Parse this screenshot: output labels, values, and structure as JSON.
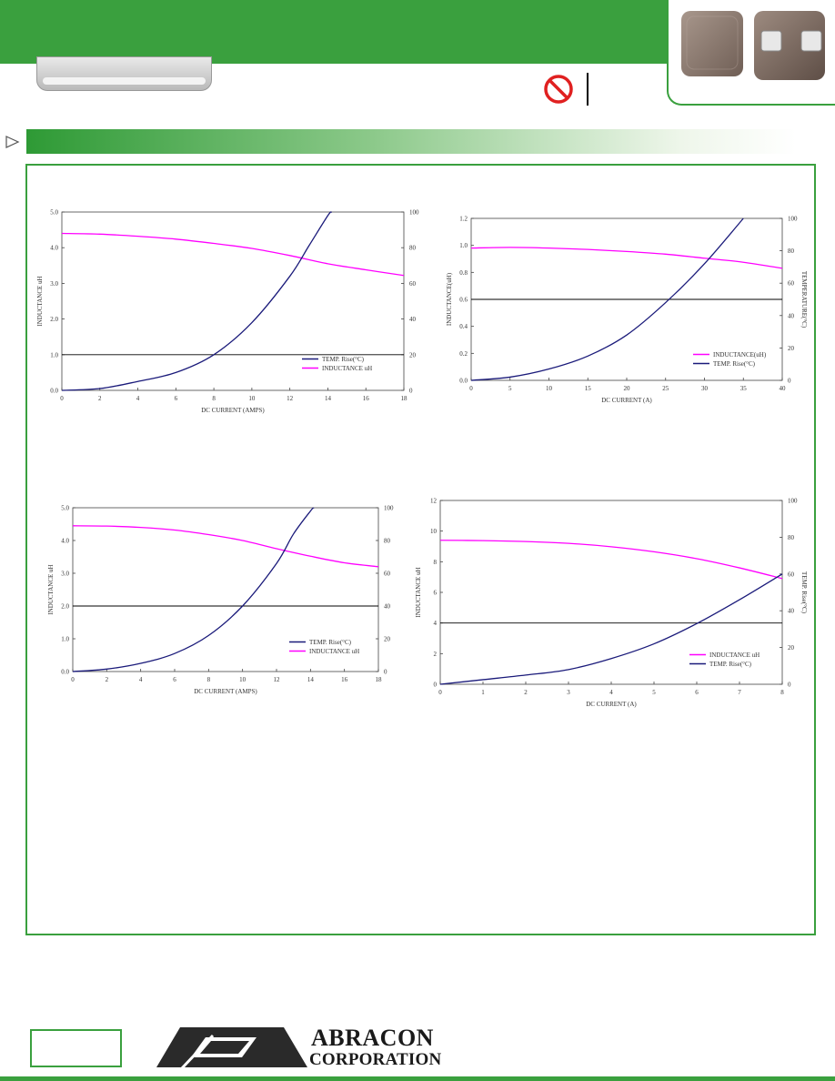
{
  "brand": {
    "line1": "ABRACON",
    "line2": "CORPORATION",
    "green": "#3aa03e"
  },
  "rohs_icon": "no-symbol-icon",
  "colors": {
    "inductance_magenta": "#ff00ff",
    "temp_navy": "#1a1a7a",
    "ref_line": "#000000"
  },
  "chart_data": [
    {
      "type": "line",
      "xlabel": "DC CURRENT (AMPS)",
      "ylabel": "INDUCTANCE uH",
      "y2label": "",
      "xlim": [
        0,
        18
      ],
      "ylim": [
        0,
        5
      ],
      "y2lim": [
        0,
        100
      ],
      "xticks": [
        "0",
        "2",
        "4",
        "6",
        "8",
        "10",
        "12",
        "14",
        "16",
        "18"
      ],
      "yticks": [
        "0.0",
        "1.0",
        "2.0",
        "3.0",
        "4.0",
        "5.0"
      ],
      "y2ticks": [
        "0",
        "20",
        "40",
        "60",
        "80",
        "100"
      ],
      "hline_y": 1.0,
      "legend": [
        "TEMP. Rise(°C)",
        "INDUCTANCE uH"
      ],
      "series": [
        {
          "name": "INDUCTANCE uH",
          "axis": "left",
          "color": "#ff00ff",
          "x": [
            0,
            2,
            4,
            6,
            8,
            10,
            12,
            14,
            16,
            18
          ],
          "y": [
            4.4,
            4.38,
            4.32,
            4.24,
            4.12,
            3.98,
            3.78,
            3.55,
            3.38,
            3.22
          ]
        },
        {
          "name": "TEMP. Rise(°C)",
          "axis": "right",
          "color": "#1a1a7a",
          "x": [
            0,
            2,
            4,
            6,
            8,
            10,
            12,
            13,
            14,
            14.2
          ],
          "y": [
            0,
            1,
            5,
            10,
            20,
            38,
            64,
            81,
            98,
            100
          ]
        }
      ]
    },
    {
      "type": "line",
      "xlabel": "DC CURRENT (A)",
      "ylabel": "INDUCTANCE(uH)",
      "y2label": "TEMPERATURE(°C)",
      "xlim": [
        0,
        40
      ],
      "ylim": [
        0,
        1.2
      ],
      "y2lim": [
        0,
        100
      ],
      "xticks": [
        "0",
        "5",
        "10",
        "15",
        "20",
        "25",
        "30",
        "35",
        "40"
      ],
      "yticks": [
        "0.0",
        "0.2",
        "0.4",
        "0.6",
        "0.8",
        "1.0",
        "1.2"
      ],
      "y2ticks": [
        "0",
        "20",
        "40",
        "60",
        "80",
        "100"
      ],
      "hline_y": 0.6,
      "legend": [
        "INDUCTANCE(uH)",
        "TEMP. Rise(°C)"
      ],
      "series": [
        {
          "name": "INDUCTANCE(uH)",
          "axis": "left",
          "color": "#ff00ff",
          "x": [
            0,
            5,
            10,
            15,
            20,
            25,
            30,
            35,
            40
          ],
          "y": [
            0.98,
            0.985,
            0.98,
            0.97,
            0.955,
            0.935,
            0.905,
            0.875,
            0.83
          ]
        },
        {
          "name": "TEMP. Rise(°C)",
          "axis": "right",
          "color": "#1a1a7a",
          "x": [
            0,
            5,
            10,
            15,
            20,
            25,
            30,
            35
          ],
          "y": [
            0,
            2,
            7,
            15,
            28,
            48,
            72,
            100
          ]
        }
      ]
    },
    {
      "type": "line",
      "xlabel": "DC CURRENT (AMPS)",
      "ylabel": "INDUCTANCE uH",
      "y2label": "",
      "xlim": [
        0,
        18
      ],
      "ylim": [
        0,
        5
      ],
      "y2lim": [
        0,
        100
      ],
      "xticks": [
        "0",
        "2",
        "4",
        "6",
        "8",
        "10",
        "12",
        "14",
        "16",
        "18"
      ],
      "yticks": [
        "0.0",
        "1.0",
        "2.0",
        "3.0",
        "4.0",
        "5.0"
      ],
      "y2ticks": [
        "0",
        "20",
        "40",
        "60",
        "80",
        "100"
      ],
      "hline_y": 2.0,
      "legend": [
        "TEMP. Rise(°C)",
        "INDUCTANCE uH"
      ],
      "series": [
        {
          "name": "INDUCTANCE uH",
          "axis": "left",
          "color": "#ff00ff",
          "x": [
            0,
            2,
            4,
            6,
            8,
            10,
            12,
            14,
            16,
            18
          ],
          "y": [
            4.45,
            4.44,
            4.4,
            4.32,
            4.18,
            4.0,
            3.75,
            3.52,
            3.32,
            3.2
          ]
        },
        {
          "name": "TEMP. Rise(°C)",
          "axis": "right",
          "color": "#1a1a7a",
          "x": [
            0,
            2,
            4,
            6,
            8,
            10,
            12,
            13,
            14,
            14.2
          ],
          "y": [
            0,
            1.5,
            5,
            11,
            22,
            40,
            66,
            84,
            98,
            100
          ]
        }
      ]
    },
    {
      "type": "line",
      "xlabel": "DC CURRENT (A)",
      "ylabel": "INDUCTANCE uH",
      "y2label": "TEMP. Rise(°C)",
      "xlim": [
        0,
        8
      ],
      "ylim": [
        0,
        12
      ],
      "y2lim": [
        0,
        100
      ],
      "xticks": [
        "0",
        "1",
        "2",
        "3",
        "4",
        "5",
        "6",
        "7",
        "8"
      ],
      "yticks": [
        "0",
        "2",
        "4",
        "6",
        "8",
        "10",
        "12"
      ],
      "y2ticks": [
        "0",
        "20",
        "40",
        "60",
        "80",
        "100"
      ],
      "hline_y": 4,
      "legend": [
        "INDUCTANCE uH",
        "TEMP. Rise(°C)"
      ],
      "series": [
        {
          "name": "INDUCTANCE uH",
          "axis": "left",
          "color": "#ff00ff",
          "x": [
            0,
            1,
            2,
            3,
            4,
            5,
            6,
            7,
            8
          ],
          "y": [
            9.4,
            9.38,
            9.32,
            9.2,
            8.98,
            8.65,
            8.2,
            7.6,
            6.9
          ]
        },
        {
          "name": "TEMP. Rise(°C)",
          "axis": "right",
          "color": "#1a1a7a",
          "x": [
            0,
            1,
            2,
            3,
            4,
            5,
            6,
            7,
            8
          ],
          "y": [
            0,
            2.5,
            5,
            8,
            14,
            22,
            33,
            46,
            60
          ]
        }
      ]
    }
  ]
}
